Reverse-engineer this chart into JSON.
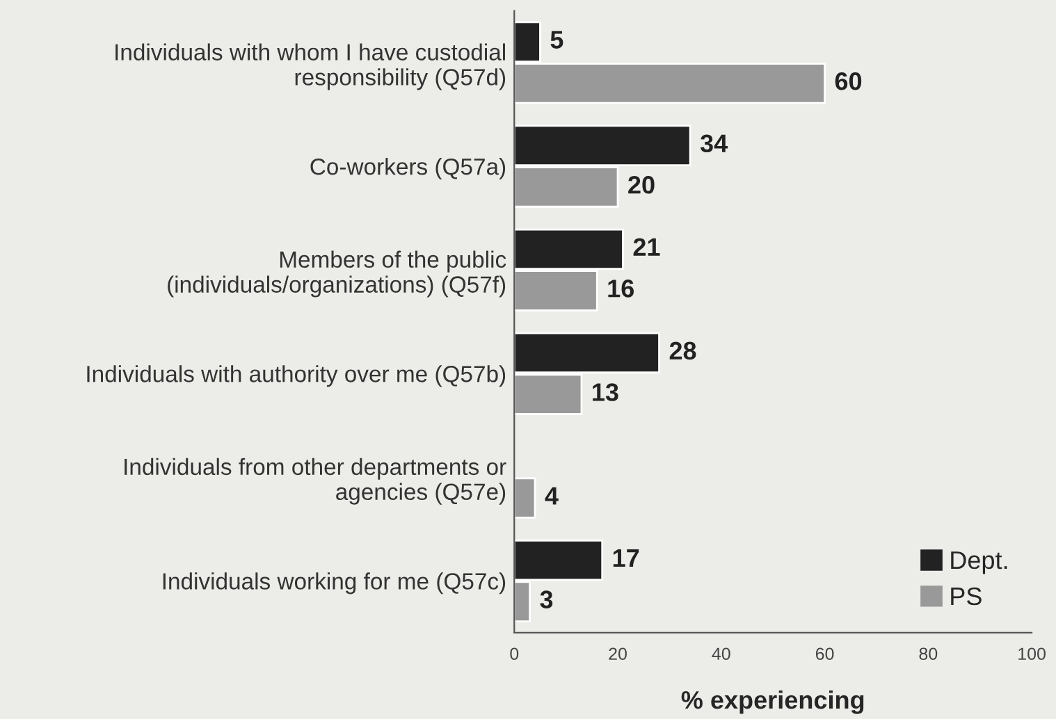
{
  "chart_data": {
    "type": "bar",
    "orientation": "horizontal",
    "categories": [
      "Individuals with whom I have custodial\nresponsibility (Q57d)",
      "Co-workers (Q57a)",
      "Members of the public\n(individuals/organizations) (Q57f)",
      "Individuals with authority over me (Q57b)",
      "Individuals from other departments or\nagencies (Q57e)",
      "Individuals working for me (Q57c)"
    ],
    "series": [
      {
        "name": "Dept.",
        "color": "#222222",
        "values": [
          5,
          34,
          21,
          28,
          null,
          17
        ]
      },
      {
        "name": "PS",
        "color": "#999999",
        "values": [
          60,
          20,
          16,
          13,
          4,
          3
        ]
      }
    ],
    "xlabel": "% experiencing",
    "xlim": [
      0,
      100
    ],
    "xticks": [
      0,
      20,
      40,
      60,
      80,
      100
    ],
    "data_labels": true,
    "legend": "bottom right",
    "grid": false
  }
}
